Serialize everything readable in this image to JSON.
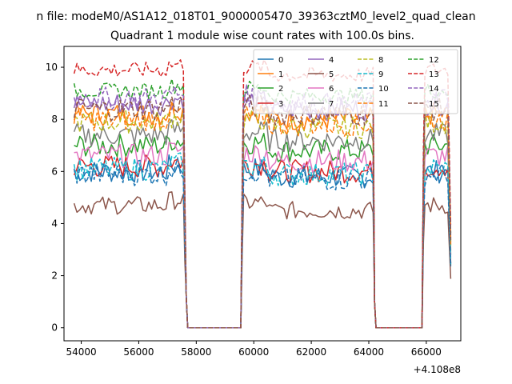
{
  "chart_data": {
    "type": "line",
    "suptitle": "n file: modeM0/AS1A12_018T01_9000005470_39363cztM0_level2_quad_clean",
    "title": "Quadrant 1 module wise count rates with 100.0s bins.",
    "xlabel": "",
    "ylabel": "",
    "x_offset_label": "+4.108e8",
    "xlim": [
      53400,
      67200
    ],
    "ylim": [
      -0.5,
      10.8
    ],
    "x_ticks": [
      54000,
      56000,
      58000,
      60000,
      62000,
      64000,
      66000
    ],
    "y_ticks": [
      0,
      2,
      4,
      6,
      8,
      10
    ],
    "x_tick_labels": [
      "54000",
      "56000",
      "58000",
      "60000",
      "62000",
      "64000",
      "66000"
    ],
    "y_tick_labels": [
      "0",
      "2",
      "4",
      "6",
      "8",
      "10"
    ],
    "grid": false,
    "legend_position": "top-right",
    "gti_segments": [
      [
        53750,
        57550
      ],
      [
        59650,
        64150
      ],
      [
        65950,
        66800
      ]
    ],
    "gap_segments": [
      [
        57700,
        59550
      ],
      [
        64250,
        65850
      ]
    ],
    "series": [
      {
        "name": "0",
        "color": "#1f77b4",
        "dash": "solid",
        "level": 6.0
      },
      {
        "name": "1",
        "color": "#ff7f0e",
        "dash": "solid",
        "level": 8.2
      },
      {
        "name": "2",
        "color": "#2ca02c",
        "dash": "solid",
        "level": 7.0
      },
      {
        "name": "3",
        "color": "#d62728",
        "dash": "solid",
        "level": 6.2
      },
      {
        "name": "4",
        "color": "#9467bd",
        "dash": "solid",
        "level": 8.6
      },
      {
        "name": "5",
        "color": "#8c564b",
        "dash": "solid",
        "level": 4.7
      },
      {
        "name": "6",
        "color": "#e377c2",
        "dash": "solid",
        "level": 6.6
      },
      {
        "name": "7",
        "color": "#7f7f7f",
        "dash": "solid",
        "level": 7.4
      },
      {
        "name": "8",
        "color": "#bcbd22",
        "dash": "dashed",
        "level": 7.9
      },
      {
        "name": "9",
        "color": "#17becf",
        "dash": "dashed",
        "level": 6.1
      },
      {
        "name": "10",
        "color": "#1f77b4",
        "dash": "dashed",
        "level": 5.9
      },
      {
        "name": "11",
        "color": "#ff7f0e",
        "dash": "dashed",
        "level": 8.0
      },
      {
        "name": "12",
        "color": "#2ca02c",
        "dash": "dashed",
        "level": 9.1
      },
      {
        "name": "13",
        "color": "#d62728",
        "dash": "dashed",
        "level": 9.9
      },
      {
        "name": "14",
        "color": "#9467bd",
        "dash": "dashed",
        "level": 8.8
      },
      {
        "name": "15",
        "color": "#8c564b",
        "dash": "dashed",
        "level": 8.4
      }
    ]
  }
}
